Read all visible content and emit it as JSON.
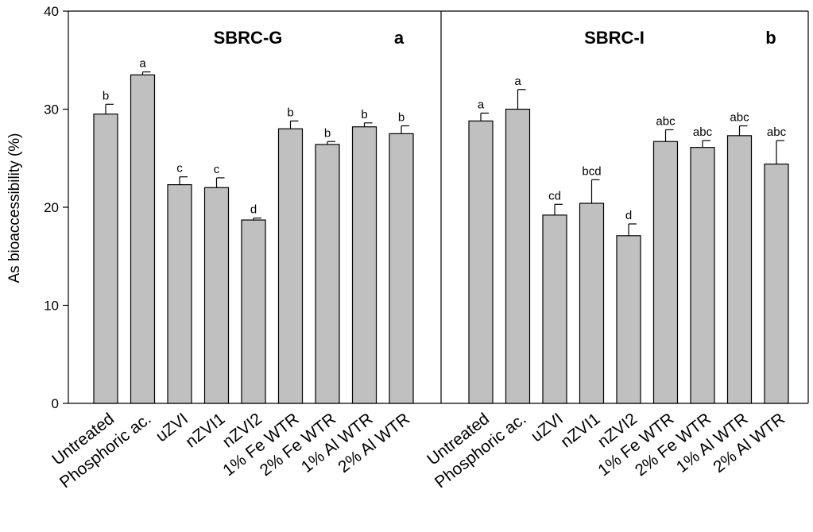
{
  "chart_data": {
    "type": "bar",
    "ylabel": "As bioaccessibility (%)",
    "ylim": [
      0,
      40
    ],
    "yticks": [
      0,
      10,
      20,
      30,
      40
    ],
    "categories": [
      "Untreated",
      "Phosphoric ac.",
      "uZVI",
      "nZVI1",
      "nZVI2",
      "1% Fe WTR",
      "2% Fe WTR",
      "1% Al WTR",
      "2% Al WTR"
    ],
    "panels": [
      {
        "title": "SBRC-G",
        "panel_letter": "a",
        "values": [
          29.5,
          33.5,
          22.3,
          22.0,
          18.7,
          28.0,
          26.4,
          28.2,
          27.5
        ],
        "errors": [
          1.0,
          0.3,
          0.8,
          1.0,
          0.2,
          0.8,
          0.3,
          0.4,
          0.8
        ],
        "significance": [
          "b",
          "a",
          "c",
          "c",
          "d",
          "b",
          "b",
          "b",
          "b"
        ]
      },
      {
        "title": "SBRC-I",
        "panel_letter": "b",
        "values": [
          28.8,
          30.0,
          19.2,
          20.4,
          17.1,
          26.7,
          26.1,
          27.3,
          24.4
        ],
        "errors": [
          0.8,
          2.0,
          1.1,
          2.4,
          1.2,
          1.2,
          0.7,
          1.0,
          2.4
        ],
        "significance": [
          "a",
          "a",
          "cd",
          "bcd",
          "d",
          "abc",
          "abc",
          "abc",
          "abc"
        ]
      }
    ],
    "grid": false,
    "legend": "none"
  }
}
